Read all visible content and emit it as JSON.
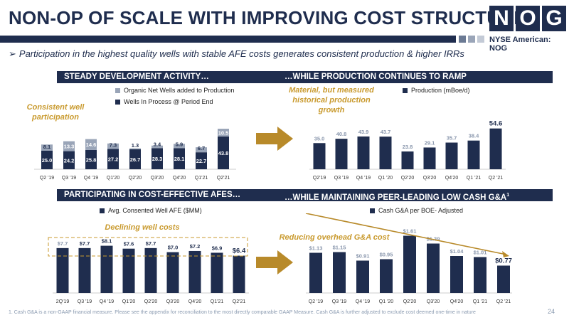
{
  "header": {
    "title": "NON-OP OF SCALE WITH IMPROVING COST STRUCTURE",
    "logo_letters": [
      "N",
      "O",
      "G"
    ],
    "exchange": "NYSE American: NOG",
    "subtitle_arrow": "➢",
    "subtitle": "Participation in the highest quality wells with stable AFE costs generates consistent production & higher IRRs"
  },
  "sections": {
    "top_left": "STEADY DEVELOPMENT ACTIVITY…",
    "top_right": "…WHILE PRODUCTION CONTINUES TO RAMP",
    "bottom_left": "PARTICIPATING IN COST-EFFECTIVE AFES…",
    "bottom_right": "…WHILE MAINTAINING PEER-LEADING LOW CASH G&A",
    "bottom_right_sup": "1"
  },
  "notes": {
    "wells": "Consistent well participation",
    "production": "Material, but measured historical production growth",
    "afe": "Declining well costs",
    "ga": "Reducing overhead G&A cost"
  },
  "colors": {
    "navy": "#1f2d4e",
    "light": "#9aa5b8",
    "gold": "#c99a2e",
    "gold_arrow": "#b88a2a"
  },
  "footnote": "1.   Cash G&A is a non-GAAP financial measure.  Please see the appendix for reconciliation to the most directly comparable GAAP Measure. Cash G&A is further adjusted to exclude cost deemed one-time in nature",
  "page_number": "24",
  "chart_data": [
    {
      "type": "bar",
      "stacked": true,
      "categories": [
        "Q2 '19",
        "Q3 '19",
        "Q4 '19",
        "Q1'20",
        "Q2'20",
        "Q3'20",
        "Q4'20",
        "Q1'21",
        "Q2'21"
      ],
      "series": [
        {
          "name": "Wells In Process @ Period End",
          "values": [
            25.0,
            24.2,
            25.8,
            27.2,
            26.7,
            28.3,
            28.1,
            22.7,
            43.8
          ],
          "labels": [
            "25.0",
            "24.2",
            "25.8",
            "27.2",
            "26.7",
            "28.3",
            "28.1",
            "22.7",
            "43.8"
          ]
        },
        {
          "name": "Organic Net Wells added to Production",
          "values": [
            8.1,
            13.3,
            14.6,
            7.3,
            1.3,
            3.4,
            5.9,
            6.7,
            10.5
          ],
          "labels": [
            "8.1",
            "13.3",
            "14.6",
            "7.3",
            "1.3",
            "3.4",
            "5.9",
            "6.7",
            "10.5"
          ]
        }
      ],
      "legend_position": "top"
    },
    {
      "type": "bar",
      "categories": [
        "Q2'19",
        "Q3 '19",
        "Q4 '19",
        "Q1 '20",
        "Q2'20",
        "Q3'20",
        "Q4'20",
        "Q1 '21",
        "Q2 '21"
      ],
      "series": [
        {
          "name": "Production (mBoe/d)",
          "values": [
            35.0,
            40.8,
            43.9,
            43.7,
            23.8,
            29.1,
            35.7,
            38.4,
            54.6
          ],
          "labels": [
            "35.0",
            "40.8",
            "43.9",
            "43.7",
            "23.8",
            "29.1",
            "35.7",
            "38.4",
            "54.6"
          ]
        }
      ],
      "legend_position": "top"
    },
    {
      "type": "bar",
      "categories": [
        "2Q'19",
        "Q3 '19",
        "Q4 '19",
        "Q1'20",
        "Q2'20",
        "Q3'20",
        "Q4'20",
        "Q1'21",
        "Q2'21"
      ],
      "series": [
        {
          "name": "Avg. Consented Well AFE ($MM)",
          "values": [
            7.7,
            7.7,
            8.1,
            7.6,
            7.7,
            7.0,
            7.2,
            6.9,
            6.4
          ],
          "labels": [
            "$7.7",
            "$7.7",
            "$8.1",
            "$7.6",
            "$7.7",
            "$7.0",
            "$7.2",
            "$6.9",
            "$6.4"
          ]
        }
      ],
      "legend_position": "top"
    },
    {
      "type": "bar",
      "categories": [
        "Q2 '19",
        "Q3 '19",
        "Q4 '19",
        "Q1 '20",
        "Q2'20",
        "Q3'20",
        "Q4'20",
        "Q1 '21",
        "Q2 '21"
      ],
      "series": [
        {
          "name": "Cash G&A per BOE- Adjusted",
          "values": [
            1.13,
            1.15,
            0.91,
            0.95,
            1.61,
            1.39,
            1.04,
            1.01,
            0.77
          ],
          "labels": [
            "$1.13",
            "$1.15",
            "$0.91",
            "$0.95",
            "$1.61",
            "$1.39",
            "$1.04",
            "$1.01",
            "$0.77"
          ]
        }
      ],
      "legend_position": "top"
    }
  ]
}
